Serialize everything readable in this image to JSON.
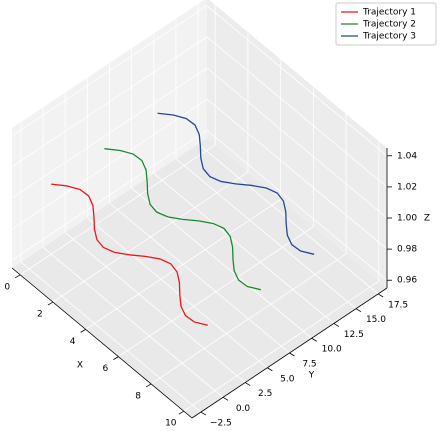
{
  "chart_data": {
    "type": "line3d",
    "x_label": "X",
    "y_label": "Y",
    "z_label": "Z",
    "xlim": [
      -0.5,
      10.5
    ],
    "ylim": [
      -3.5,
      18.5
    ],
    "zlim": [
      0.955,
      1.045
    ],
    "xticks": [
      0,
      2,
      4,
      6,
      8,
      10
    ],
    "yticks": [
      {
        "value": -2.5,
        "label": "−2.5"
      },
      {
        "value": 0,
        "label": "0.0"
      },
      2.5,
      {
        "value": 5,
        "label": "5.0"
      },
      7.5,
      {
        "value": 10,
        "label": "10.0"
      },
      12.5,
      {
        "value": 15,
        "label": "15.0"
      },
      17.5
    ],
    "zticks": [
      0.96,
      0.98,
      {
        "value": 1,
        "label": "1.00"
      },
      1.02,
      1.04
    ],
    "grid": true,
    "legend": "upper right",
    "x": [
      0,
      0.5,
      1,
      1.5,
      2,
      2.5,
      3,
      3.5,
      4,
      4.5,
      5,
      5.5,
      6,
      6.5,
      7,
      7.5,
      8,
      8.5,
      9,
      9.5,
      10
    ],
    "series": [
      {
        "name": "Trajectory 1",
        "color": "#e8191c",
        "y": [
          0,
          0.85,
          1.4,
          1.46,
          1.01,
          0.21,
          -0.66,
          -1.31,
          -1.49,
          -1.16,
          -0.42,
          0.47,
          1.19,
          1.5,
          1.28,
          0.62,
          -0.26,
          -1.05,
          -1.47,
          -1.4,
          -0.8
        ],
        "z": [
          1,
          1,
          1,
          1,
          1,
          1,
          1,
          1,
          1,
          1,
          1,
          1,
          1,
          1,
          1,
          1,
          1,
          1,
          1,
          1,
          1
        ]
      },
      {
        "name": "Trajectory 2",
        "color": "#1a8a2e",
        "y": [
          6,
          6.85,
          7.4,
          7.46,
          7.01,
          6.21,
          5.34,
          4.69,
          4.51,
          4.84,
          5.58,
          6.47,
          7.19,
          7.5,
          7.28,
          6.62,
          5.74,
          4.95,
          4.53,
          4.6,
          5.2
        ],
        "z": [
          1,
          1,
          1,
          1,
          1,
          1,
          1,
          1,
          1,
          1,
          1,
          1,
          1,
          1,
          1,
          1,
          1,
          1,
          1,
          1,
          1
        ]
      },
      {
        "name": "Trajectory 3",
        "color": "#25469a",
        "y": [
          12,
          12.85,
          13.4,
          13.46,
          13.01,
          12.21,
          11.34,
          10.69,
          10.51,
          10.84,
          11.58,
          12.47,
          13.19,
          13.5,
          13.28,
          12.62,
          11.74,
          10.95,
          10.53,
          10.6,
          11.2
        ],
        "z": [
          1,
          1,
          1,
          1,
          1,
          1,
          1,
          1,
          1,
          1,
          1,
          1,
          1,
          1,
          1,
          1,
          1,
          1,
          1,
          1,
          1
        ]
      }
    ]
  }
}
